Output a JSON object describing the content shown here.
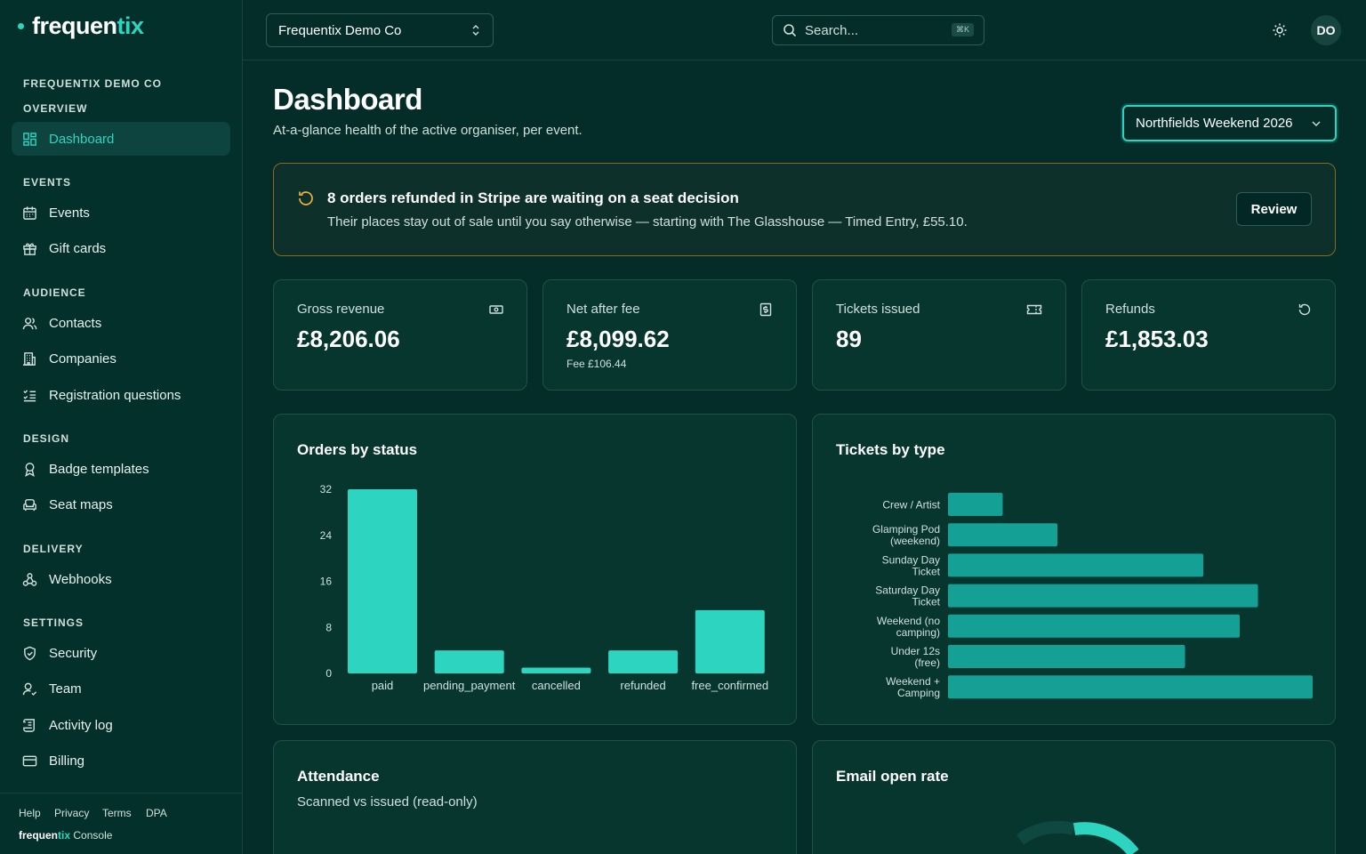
{
  "brand": {
    "part1": "frequen",
    "part2": "tix",
    "console_brand1": "frequen",
    "console_brand2": "tix",
    "console_label": "Console"
  },
  "sidebar": {
    "org": "FREQUENTIX DEMO CO",
    "sections": {
      "overview": "OVERVIEW",
      "events": "EVENTS",
      "audience": "AUDIENCE",
      "design": "DESIGN",
      "delivery": "DELIVERY",
      "settings": "SETTINGS"
    },
    "items": {
      "dashboard": "Dashboard",
      "events": "Events",
      "gift_cards": "Gift cards",
      "contacts": "Contacts",
      "companies": "Companies",
      "registration_questions": "Registration questions",
      "badge_templates": "Badge templates",
      "seat_maps": "Seat maps",
      "webhooks": "Webhooks",
      "security": "Security",
      "team": "Team",
      "activity_log": "Activity log",
      "billing": "Billing"
    },
    "footer_links": [
      "Help",
      "Privacy",
      "Terms",
      "DPA"
    ]
  },
  "topbar": {
    "org_name": "Frequentix Demo Co",
    "search_placeholder": "Search...",
    "search_kbd": "⌘K",
    "avatar": "DO"
  },
  "page": {
    "title": "Dashboard",
    "subtitle": "At-a-glance health of the active organiser, per event.",
    "event_selected": "Northfields Weekend 2026"
  },
  "alert": {
    "title": "8 orders refunded in Stripe are waiting on a seat decision",
    "text": "Their places stay out of sale until you say otherwise — starting with The Glasshouse — Timed Entry, £55.10.",
    "button": "Review"
  },
  "stats": [
    {
      "label": "Gross revenue",
      "value": "£8,206.06",
      "sub": ""
    },
    {
      "label": "Net after fee",
      "value": "£8,099.62",
      "sub": "Fee £106.44"
    },
    {
      "label": "Tickets issued",
      "value": "89",
      "sub": ""
    },
    {
      "label": "Refunds",
      "value": "£1,853.03",
      "sub": ""
    }
  ],
  "cards": {
    "attendance_title": "Attendance",
    "attendance_sub": "Scanned vs issued (read-only)",
    "email_title": "Email open rate"
  },
  "colors": {
    "accent": "#2dd4bf",
    "bar_secondary": "#14a094",
    "background": "#042d2a",
    "warning_border": "#8a6a1c"
  },
  "chart_data": [
    {
      "type": "bar",
      "title": "Orders by status",
      "categories": [
        "paid",
        "pending_payment",
        "cancelled",
        "refunded",
        "free_confirmed"
      ],
      "values": [
        32,
        4,
        1,
        4,
        11
      ],
      "yticks": [
        0,
        8,
        16,
        24,
        32
      ],
      "ylim": [
        0,
        32
      ]
    },
    {
      "type": "bar",
      "orientation": "horizontal",
      "title": "Tickets by type",
      "categories": [
        [
          "Crew / Artist"
        ],
        [
          "Glamping Pod",
          "(weekend)"
        ],
        [
          "Sunday Day",
          "Ticket"
        ],
        [
          "Saturday Day",
          "Ticket"
        ],
        [
          "Weekend (no",
          "camping)"
        ],
        [
          "Under 12s",
          "(free)"
        ],
        [
          "Weekend +",
          "Camping"
        ]
      ],
      "values": [
        3,
        6,
        14,
        17,
        16,
        13,
        20
      ]
    }
  ]
}
